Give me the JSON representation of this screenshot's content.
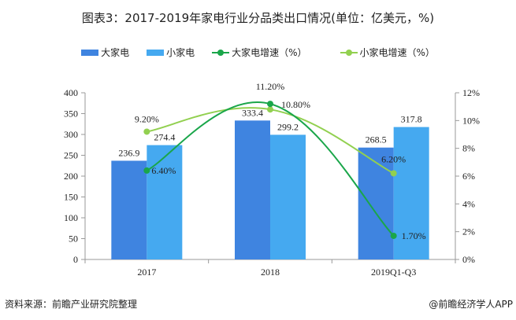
{
  "chart_data": {
    "type": "bar+line",
    "title": "图表3：2017-2019年家电行业分品类出口情况(单位：亿美元，%)",
    "categories": [
      "2017",
      "2018",
      "2019Q1-Q3"
    ],
    "bar_series": [
      {
        "name": "大家电",
        "values": [
          236.9,
          333.4,
          268.5
        ],
        "color": "#3f84e0"
      },
      {
        "name": "小家电",
        "values": [
          274.4,
          299.2,
          317.8
        ],
        "color": "#45a9f0"
      }
    ],
    "line_series": [
      {
        "name": "大家电增速（%）",
        "values": [
          6.4,
          11.2,
          1.7
        ],
        "labels": [
          "6.40%",
          "11.20%",
          "1.70%"
        ],
        "color": "#1aa64a"
      },
      {
        "name": "小家电增速（%）",
        "values": [
          9.2,
          10.8,
          6.2
        ],
        "labels": [
          "9.20%",
          "10.80%",
          "6.20%"
        ],
        "color": "#92d050"
      }
    ],
    "y_left": {
      "range": [
        0,
        400
      ],
      "ticks": [
        "0",
        "50",
        "100",
        "150",
        "200",
        "250",
        "300",
        "350",
        "400"
      ]
    },
    "y_right": {
      "range": [
        0,
        12
      ],
      "ticks": [
        "0%",
        "2%",
        "4%",
        "6%",
        "8%",
        "10%",
        "12%"
      ]
    },
    "legend_position": "top",
    "grid": false
  },
  "footer": {
    "source": "资料来源：前瞻产业研究院整理",
    "brand": "@前瞻经济学人APP"
  }
}
